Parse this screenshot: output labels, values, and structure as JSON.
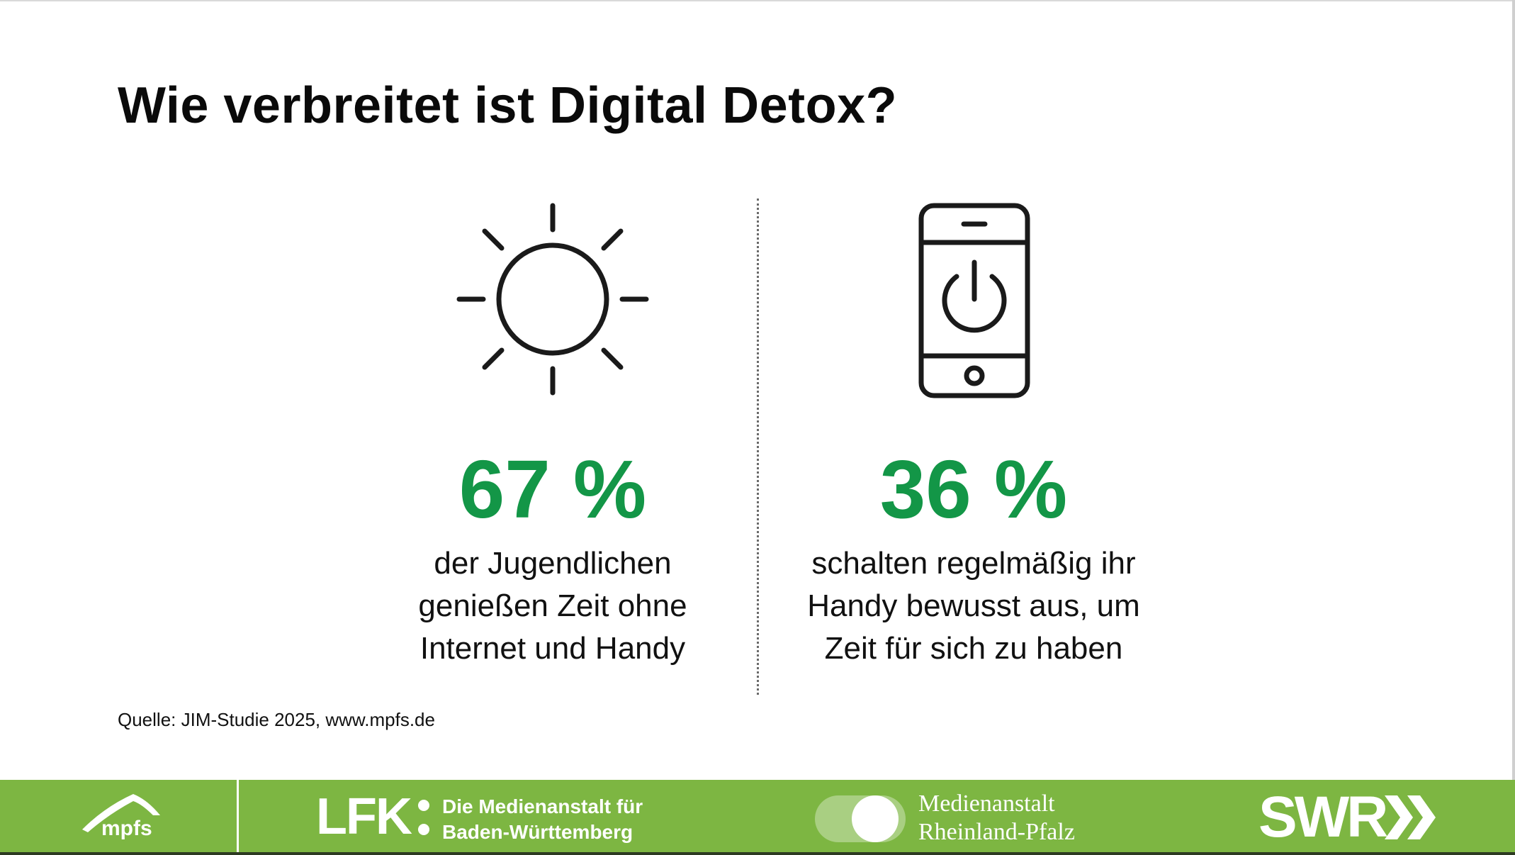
{
  "title": "Wie verbreitet ist Digital Detox?",
  "left_stat": {
    "icon": "sun-icon",
    "value": "67 %",
    "description": [
      "der Jugendlichen",
      "genießen Zeit ohne",
      "Internet und Handy"
    ]
  },
  "right_stat": {
    "icon": "phone-power-icon",
    "value": "36 %",
    "description": [
      "schalten regelmäßig ihr",
      "Handy bewusst aus, um",
      "Zeit für sich zu haben"
    ]
  },
  "source": "Quelle: JIM-Studie 2025, www.mpfs.de",
  "footer": {
    "mpfs": "mpfs",
    "lfk_abbr": "LFK",
    "lfk_name": [
      "Die Medienanstalt für",
      "Baden-Württemberg"
    ],
    "mrp_name": [
      "Medienanstalt",
      "Rheinland-Pfalz"
    ],
    "swr": "SWR"
  },
  "colors": {
    "accent_green": "#139647",
    "footer_green": "#7db642",
    "text": "#111111"
  }
}
